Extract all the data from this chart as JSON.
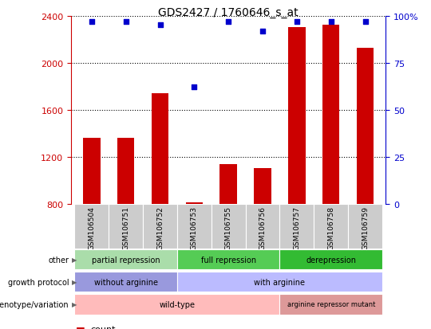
{
  "title": "GDS2427 / 1760646_s_at",
  "samples": [
    "GSM106504",
    "GSM106751",
    "GSM106752",
    "GSM106753",
    "GSM106755",
    "GSM106756",
    "GSM106757",
    "GSM106758",
    "GSM106759"
  ],
  "counts": [
    1360,
    1360,
    1740,
    810,
    1140,
    1100,
    2300,
    2320,
    2130
  ],
  "percentile_ranks": [
    97,
    97,
    95,
    62,
    97,
    92,
    97,
    97,
    97
  ],
  "ylim_left": [
    800,
    2400
  ],
  "ylim_right": [
    0,
    100
  ],
  "bar_color": "#cc0000",
  "dot_color": "#0000cc",
  "tick_color_left": "#cc0000",
  "tick_color_right": "#0000cc",
  "bar_baseline": 800,
  "bg_color": "#ffffff",
  "xticklabel_bg": "#cccccc",
  "annotation_rows": [
    {
      "label": "other",
      "groups": [
        {
          "text": "partial repression",
          "start": 0,
          "end": 3,
          "color": "#aaddaa"
        },
        {
          "text": "full repression",
          "start": 3,
          "end": 6,
          "color": "#55cc55"
        },
        {
          "text": "derepression",
          "start": 6,
          "end": 9,
          "color": "#33bb33"
        }
      ]
    },
    {
      "label": "growth protocol",
      "groups": [
        {
          "text": "without arginine",
          "start": 0,
          "end": 3,
          "color": "#9999dd"
        },
        {
          "text": "with arginine",
          "start": 3,
          "end": 9,
          "color": "#bbbbff"
        }
      ]
    },
    {
      "label": "genotype/variation",
      "groups": [
        {
          "text": "wild-type",
          "start": 0,
          "end": 6,
          "color": "#ffbbbb"
        },
        {
          "text": "arginine repressor mutant",
          "start": 6,
          "end": 9,
          "color": "#dd9999"
        }
      ]
    }
  ]
}
